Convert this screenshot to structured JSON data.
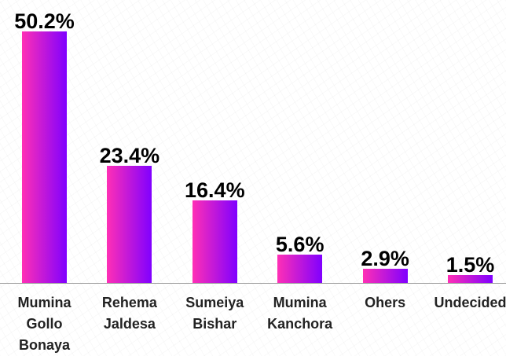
{
  "chart_data": {
    "type": "bar",
    "categories": [
      "Mumina Gollo Bonaya",
      "Rehema Jaldesa",
      "Sumeiya Bishar",
      "Mumina Kanchora",
      "Ohers",
      "Undecided"
    ],
    "values": [
      50.2,
      23.4,
      16.4,
      5.6,
      2.9,
      1.5
    ],
    "value_labels": [
      "50.2%",
      "23.4%",
      "16.4%",
      "5.6%",
      "2.9%",
      "1.5%"
    ],
    "color": [
      "#ff2fb5",
      "#8000ff"
    ]
  }
}
